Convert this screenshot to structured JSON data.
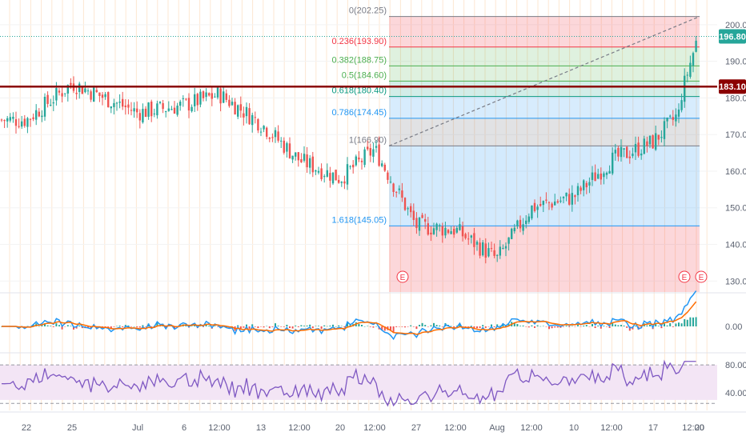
{
  "chart_data": [
    {
      "type": "candlestick",
      "x_tick_labels": [
        "22",
        "25",
        "Jul",
        "6",
        "12:00",
        "13",
        "12:00",
        "20",
        "12:00",
        "27",
        "12:00",
        "Aug",
        "12:00",
        "10",
        "12:00",
        "17",
        "12:00",
        "20"
      ],
      "price_axis_ticks": [
        "200.00",
        "190.00",
        "180.00",
        "170.00",
        "160.00",
        "150.00",
        "140.00",
        "130.00"
      ],
      "ylim": [
        127,
        205
      ],
      "last_price": "196.80",
      "horizontal_line": {
        "value": 183.1,
        "label": "183.10",
        "color": "#8b0000"
      },
      "fib_retracement": {
        "levels": [
          {
            "ratio": "0",
            "value": 202.25,
            "label": "0(202.25)",
            "color": "#787b86"
          },
          {
            "ratio": "0.236",
            "value": 193.9,
            "label": "0.236(193.90)",
            "color": "#f23645"
          },
          {
            "ratio": "0.382",
            "value": 188.75,
            "label": "0.382(188.75)",
            "color": "#4caf50"
          },
          {
            "ratio": "0.5",
            "value": 184.6,
            "label": "0.5(184.60)",
            "color": "#4caf50"
          },
          {
            "ratio": "0.618",
            "value": 180.4,
            "label": "0.618(180.40)",
            "color": "#089981"
          },
          {
            "ratio": "0.786",
            "value": 174.45,
            "label": "0.786(174.45)",
            "color": "#2196f3"
          },
          {
            "ratio": "1",
            "value": 166.9,
            "label": "1(166.90)",
            "color": "#787b86"
          },
          {
            "ratio": "1.618",
            "value": 145.05,
            "label": "1.618(145.05)",
            "color": "#2196f3"
          }
        ]
      },
      "earnings_markers": [
        "E",
        "E",
        "E"
      ],
      "ohlc_path": [
        {
          "x": "22",
          "price": 174
        },
        {
          "x": "25",
          "price": 184
        },
        {
          "x": "Jul",
          "price": 176
        },
        {
          "x": "6",
          "price": 178
        },
        {
          "x": "12:00",
          "price": 181
        },
        {
          "x": "13",
          "price": 173
        },
        {
          "x": "12:00",
          "price": 163
        },
        {
          "x": "20",
          "price": 158
        },
        {
          "x": "12:00",
          "price": 166
        },
        {
          "x": "27",
          "price": 145
        },
        {
          "x": "12:00",
          "price": 144
        },
        {
          "x": "Aug",
          "price": 136
        },
        {
          "x": "12:00",
          "price": 150
        },
        {
          "x": "10",
          "price": 153
        },
        {
          "x": "12:00",
          "price": 163
        },
        {
          "x": "17",
          "price": 168
        },
        {
          "x": "12:00",
          "price": 180
        },
        {
          "x": "20",
          "price": 196.8
        }
      ]
    },
    {
      "type": "macd",
      "axis_ticks": [
        "0.00"
      ],
      "colors": {
        "macd": "#2196f3",
        "signal": "#ff6d00",
        "hist_pos": "#26a69a",
        "hist_neg": "#ef5350"
      }
    },
    {
      "type": "rsi",
      "axis_ticks": [
        "80.00",
        "40.00"
      ],
      "band": [
        30,
        70
      ],
      "line_color": "#7e57c2",
      "band_color": "#f3e5f5"
    }
  ]
}
